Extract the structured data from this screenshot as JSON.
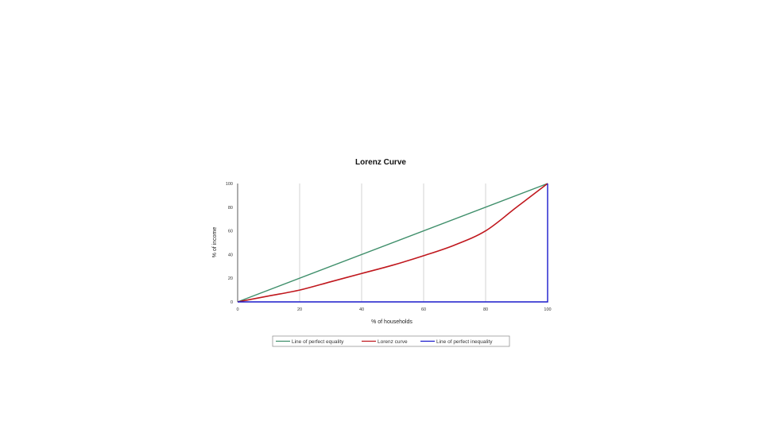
{
  "chart_data": {
    "type": "line",
    "title": "Lorenz Curve",
    "xlabel": "% of households",
    "ylabel": "% of income",
    "xlim": [
      0,
      100
    ],
    "ylim": [
      0,
      100
    ],
    "x_ticks": [
      "0",
      "20",
      "40",
      "60",
      "80",
      "100"
    ],
    "y_ticks": [
      "0",
      "20",
      "40",
      "60",
      "80",
      "100"
    ],
    "grid": "vertical",
    "legend_position": "bottom",
    "series": [
      {
        "name": "Line of perfect equality",
        "color": "#3f8f6b",
        "x": [
          0,
          100
        ],
        "y": [
          0,
          100
        ]
      },
      {
        "name": "Lorenz curve",
        "color": "#c0181e",
        "x": [
          0,
          10,
          20,
          30,
          40,
          50,
          60,
          70,
          80,
          90,
          100
        ],
        "y": [
          0,
          5,
          10,
          17,
          24,
          31,
          39,
          48,
          60,
          80,
          100
        ]
      },
      {
        "name": "Line of perfect inequality",
        "color": "#1a1acc",
        "x": [
          0,
          100,
          100
        ],
        "y": [
          0,
          0,
          100
        ]
      }
    ]
  }
}
